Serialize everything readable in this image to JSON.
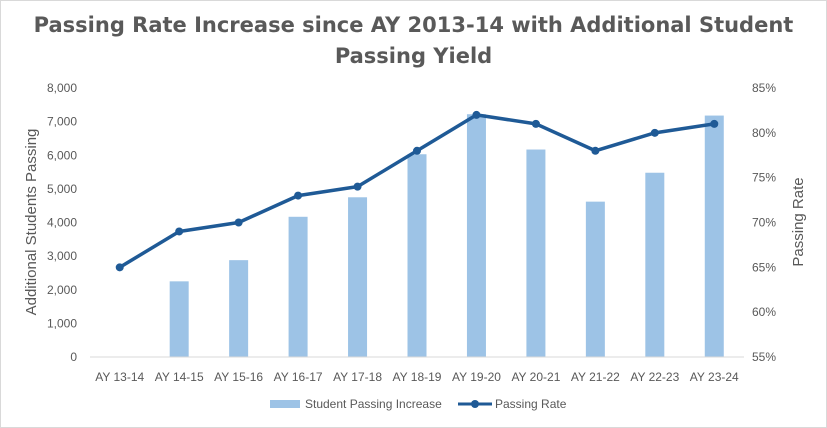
{
  "chart_data": {
    "type": "bar",
    "title": "Passing Rate Increase since AY 2013-14 with Additional Student Passing Yield",
    "title_lines": [
      "Passing Rate Increase since AY 2013-14 with Additional Student",
      "Passing Yield"
    ],
    "categories": [
      "AY 13-14",
      "AY 14-15",
      "AY 15-16",
      "AY 16-17",
      "AY 17-18",
      "AY 18-19",
      "AY 19-20",
      "AY 20-21",
      "AY 21-22",
      "AY 22-23",
      "AY 23-24"
    ],
    "series": [
      {
        "name": "Student Passing Increase",
        "type": "bar",
        "axis": "left",
        "color": "#9dc3e6",
        "values": [
          0,
          2250,
          2880,
          4170,
          4750,
          6030,
          7220,
          6170,
          4620,
          5480,
          7180
        ]
      },
      {
        "name": "Passing Rate",
        "type": "line",
        "axis": "right",
        "color": "#1f5a96",
        "values": [
          65,
          69,
          70,
          73,
          74,
          78,
          82,
          81,
          78,
          80,
          81
        ]
      }
    ],
    "ylabel": "Additional Students Passing",
    "ylim": [
      0,
      8000
    ],
    "yticks": [
      0,
      1000,
      2000,
      3000,
      4000,
      5000,
      6000,
      7000,
      8000
    ],
    "ytick_labels": [
      "0",
      "1,000",
      "2,000",
      "3,000",
      "4,000",
      "5,000",
      "6,000",
      "7,000",
      "8,000"
    ],
    "y2label": "Passing Rate",
    "y2lim": [
      55,
      85
    ],
    "y2ticks": [
      55,
      60,
      65,
      70,
      75,
      80,
      85
    ],
    "y2tick_labels": [
      "55%",
      "60%",
      "65%",
      "70%",
      "75%",
      "80%",
      "85%"
    ],
    "grid": false,
    "legend": {
      "position": "bottom",
      "entries": [
        "Student Passing Increase",
        "Passing Rate"
      ]
    }
  },
  "colors": {
    "text": "#595959",
    "axis": "#d9d9d9"
  }
}
